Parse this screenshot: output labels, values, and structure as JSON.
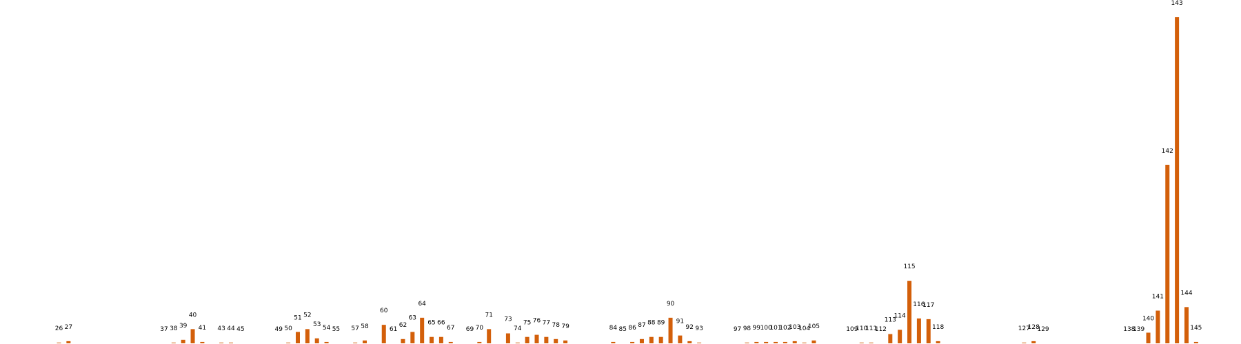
{
  "chart_data": {
    "type": "bar",
    "color": "#d35f0a",
    "categories": [
      "26",
      "27",
      "37",
      "38",
      "39",
      "40",
      "41",
      "43",
      "44",
      "45",
      "49",
      "50",
      "51",
      "52",
      "53",
      "54",
      "55",
      "57",
      "58",
      "60",
      "61",
      "62",
      "63",
      "64",
      "65",
      "66",
      "67",
      "69",
      "70",
      "71",
      "73",
      "74",
      "75",
      "76",
      "77",
      "78",
      "79",
      "84",
      "85",
      "86",
      "87",
      "88",
      "89",
      "90",
      "91",
      "92",
      "93",
      "97",
      "98",
      "99",
      "100",
      "101",
      "102",
      "103",
      "104",
      "105",
      "109",
      "110",
      "111",
      "112",
      "113",
      "114",
      "115",
      "116",
      "117",
      "118",
      "127",
      "128",
      "129",
      "138",
      "139",
      "140",
      "141",
      "142",
      "143",
      "144",
      "145"
    ],
    "values": [
      1,
      3,
      0,
      1,
      5,
      20,
      2,
      1,
      1,
      0,
      0,
      1,
      16,
      20,
      7,
      2,
      0,
      1,
      4,
      26,
      0,
      6,
      16,
      36,
      9,
      9,
      2,
      0,
      2,
      20,
      14,
      1,
      9,
      12,
      9,
      6,
      4,
      2,
      0,
      2,
      6,
      9,
      9,
      36,
      11,
      3,
      1,
      0,
      1,
      2,
      2,
      2,
      2,
      3,
      1,
      4,
      0,
      1,
      1,
      0,
      13,
      19,
      88,
      35,
      34,
      3,
      1,
      3,
      0,
      0,
      0,
      15,
      46,
      251,
      459,
      51,
      2
    ],
    "ylim": [
      0,
      460
    ],
    "grid": false,
    "legend": "none",
    "title": "",
    "xlabel": "",
    "ylabel": ""
  }
}
